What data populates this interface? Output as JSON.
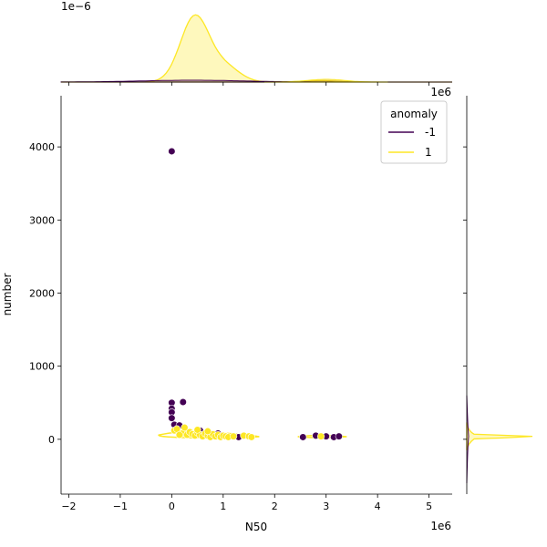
{
  "chart_data": {
    "type": "scatter",
    "xlabel": "N50",
    "ylabel": "number",
    "x_offset_label": "1e6",
    "x_ticks": [
      -2,
      -1,
      0,
      1,
      2,
      3,
      4,
      5
    ],
    "x_tick_labels": [
      "−2",
      "−1",
      "0",
      "1",
      "2",
      "3",
      "4",
      "5"
    ],
    "xlim": [
      -2.15,
      5.45
    ],
    "y_ticks": [
      0,
      1000,
      2000,
      3000,
      4000
    ],
    "y_tick_labels": [
      "0",
      "1000",
      "2000",
      "3000",
      "4000"
    ],
    "ylim": [
      -750,
      4700
    ],
    "top_marginal_offset_label": "1e−6",
    "right_marginal_offset_label": "1e6",
    "legend": {
      "title": "anomaly",
      "placement": "upper-right",
      "entries": [
        {
          "label": "-1",
          "color": "#440154"
        },
        {
          "label": "1",
          "color": "#fde725"
        }
      ]
    },
    "series": [
      {
        "name": "-1",
        "color": "#440154",
        "x": [
          0.0,
          0.0,
          0.0,
          0.0,
          0.0,
          0.22,
          0.05,
          0.15,
          0.55,
          1.3,
          2.55,
          2.8,
          3.0,
          3.15,
          3.25,
          0.35,
          0.6,
          0.9
        ],
        "y": [
          3940,
          500,
          420,
          370,
          290,
          510,
          200,
          190,
          120,
          30,
          30,
          50,
          40,
          30,
          40,
          100,
          60,
          80
        ]
      },
      {
        "name": "1",
        "color": "#fde725",
        "x": [
          0.05,
          0.1,
          0.2,
          0.25,
          0.3,
          0.35,
          0.4,
          0.45,
          0.5,
          0.55,
          0.6,
          0.65,
          0.7,
          0.75,
          0.8,
          0.85,
          0.9,
          0.95,
          1.0,
          1.05,
          1.1,
          1.2,
          1.4,
          1.5,
          1.55,
          2.9,
          0.15,
          0.5,
          0.7
        ],
        "y": [
          120,
          140,
          80,
          160,
          60,
          100,
          70,
          50,
          90,
          60,
          40,
          80,
          50,
          30,
          70,
          40,
          60,
          30,
          50,
          40,
          30,
          40,
          50,
          40,
          30,
          40,
          60,
          130,
          110
        ]
      }
    ]
  }
}
